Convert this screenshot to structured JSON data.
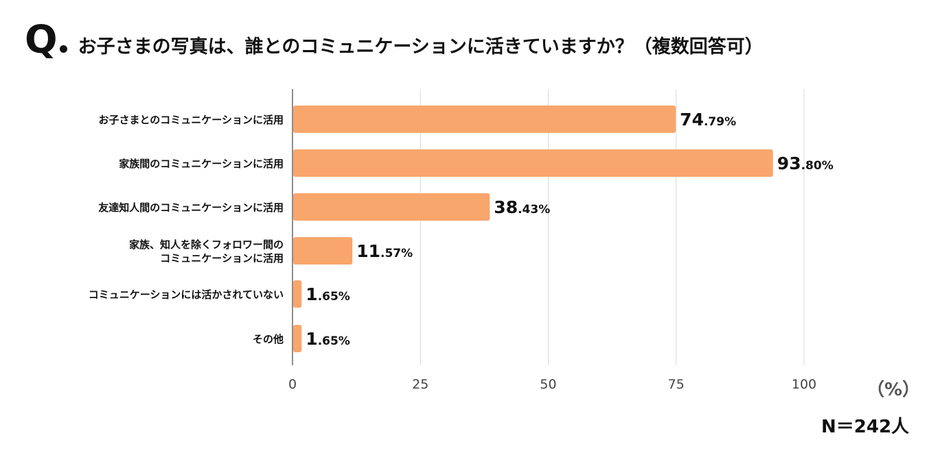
{
  "header": {
    "q_mark": "Q",
    "question": "お子さまの写真は、誰とのコミュニケーションに活きていますか？（複数回答可）"
  },
  "chart_data": {
    "type": "bar",
    "orientation": "horizontal",
    "title": "お子さまの写真は、誰とのコミュニケーションに活きていますか？（複数回答可）",
    "categories": [
      [
        "お子さまとのコミュニケーションに活用"
      ],
      [
        "家族間のコミュニケーションに活用"
      ],
      [
        "友達知人間のコミュニケーションに活用"
      ],
      [
        "家族、知人を除くフォロワー間の",
        "コミュニケーションに活用"
      ],
      [
        "コミュニケーションには活かされていない"
      ],
      [
        "その他"
      ]
    ],
    "values": [
      74.79,
      93.8,
      38.43,
      11.57,
      1.65,
      1.65
    ],
    "value_labels": [
      {
        "int": "74",
        "frac": ".79%"
      },
      {
        "int": "93",
        "frac": ".80%"
      },
      {
        "int": "38",
        "frac": ".43%"
      },
      {
        "int": "11",
        "frac": ".57%"
      },
      {
        "int": "1",
        "frac": ".65%"
      },
      {
        "int": "1",
        "frac": ".65%"
      }
    ],
    "xlim": [
      0,
      100
    ],
    "xticks": [
      "0",
      "25",
      "50",
      "75",
      "100"
    ],
    "xlabel": "（%）",
    "grid": true,
    "bar_color": "#F9A66C",
    "grid_color": "#d9d9d9",
    "axis_color": "#666666"
  },
  "footer": {
    "unit": "（%）",
    "sample_size": "N＝242人"
  }
}
